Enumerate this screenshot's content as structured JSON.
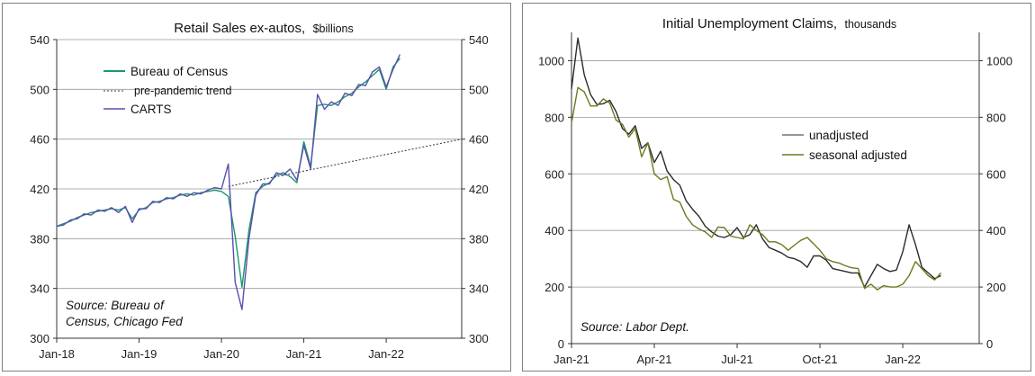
{
  "colors": {
    "census": "#1a9a6a",
    "trend": "#333333",
    "carts": "#5a4fb0",
    "unadjusted": "#2b2b2b",
    "seasonal": "#6b7a1e"
  },
  "chart_data": [
    {
      "type": "line",
      "title": "Retail Sales ex-autos,",
      "title_unit": "$billions",
      "ylim": [
        300,
        540
      ],
      "yticks": [
        "300",
        "340",
        "380",
        "420",
        "460",
        "500",
        "540"
      ],
      "xticks": [
        "Jan-18",
        "Jan-19",
        "Jan-20",
        "Jan-21",
        "Jan-22"
      ],
      "x_domain_months": [
        0,
        59
      ],
      "grid": true,
      "legend_position": "top-left",
      "source_lines": [
        "Source: Bureau of",
        "Census, Chicago Fed"
      ],
      "series": [
        {
          "name": "Bureau of Census",
          "key": "census",
          "points": [
            [
              0,
              390
            ],
            [
              1,
              392
            ],
            [
              2,
              394
            ],
            [
              3,
              397
            ],
            [
              4,
              399
            ],
            [
              5,
              401
            ],
            [
              6,
              402
            ],
            [
              7,
              403
            ],
            [
              8,
              404
            ],
            [
              9,
              403
            ],
            [
              10,
              405
            ],
            [
              11,
              396
            ],
            [
              12,
              403
            ],
            [
              13,
              405
            ],
            [
              14,
              409
            ],
            [
              15,
              410
            ],
            [
              16,
              412
            ],
            [
              17,
              413
            ],
            [
              18,
              415
            ],
            [
              19,
              416
            ],
            [
              20,
              415
            ],
            [
              21,
              417
            ],
            [
              22,
              418
            ],
            [
              23,
              419
            ],
            [
              24,
              418
            ],
            [
              25,
              414
            ],
            [
              26,
              382
            ],
            [
              27,
              341
            ],
            [
              28,
              387
            ],
            [
              29,
              417
            ],
            [
              30,
              422
            ],
            [
              31,
              425
            ],
            [
              32,
              431
            ],
            [
              33,
              433
            ],
            [
              34,
              430
            ],
            [
              35,
              425
            ],
            [
              36,
              458
            ],
            [
              37,
              438
            ],
            [
              38,
              487
            ],
            [
              39,
              488
            ],
            [
              40,
              487
            ],
            [
              41,
              490
            ],
            [
              42,
              494
            ],
            [
              43,
              497
            ],
            [
              44,
              502
            ],
            [
              45,
              506
            ],
            [
              46,
              511
            ],
            [
              47,
              516
            ],
            [
              48,
              500
            ],
            [
              49,
              518
            ],
            [
              50,
              525
            ]
          ]
        },
        {
          "name": "pre-pandemic trend",
          "key": "trend",
          "dashed": true,
          "points": [
            [
              25,
              422
            ],
            [
              59,
              460
            ]
          ]
        },
        {
          "name": "CARTS",
          "key": "carts",
          "points": [
            [
              0,
              390
            ],
            [
              1,
              391
            ],
            [
              2,
              395
            ],
            [
              3,
              396
            ],
            [
              4,
              400
            ],
            [
              5,
              399
            ],
            [
              6,
              403
            ],
            [
              7,
              402
            ],
            [
              8,
              405
            ],
            [
              9,
              401
            ],
            [
              10,
              406
            ],
            [
              11,
              393
            ],
            [
              12,
              404
            ],
            [
              13,
              404
            ],
            [
              14,
              410
            ],
            [
              15,
              409
            ],
            [
              16,
              413
            ],
            [
              17,
              412
            ],
            [
              18,
              416
            ],
            [
              19,
              414
            ],
            [
              20,
              417
            ],
            [
              21,
              416
            ],
            [
              22,
              419
            ],
            [
              23,
              421
            ],
            [
              24,
              420
            ],
            [
              25,
              440
            ],
            [
              26,
              345
            ],
            [
              27,
              323
            ],
            [
              28,
              380
            ],
            [
              29,
              415
            ],
            [
              30,
              424
            ],
            [
              31,
              424
            ],
            [
              32,
              433
            ],
            [
              33,
              431
            ],
            [
              34,
              436
            ],
            [
              35,
              427
            ],
            [
              36,
              455
            ],
            [
              37,
              436
            ],
            [
              38,
              496
            ],
            [
              39,
              484
            ],
            [
              40,
              490
            ],
            [
              41,
              487
            ],
            [
              42,
              497
            ],
            [
              43,
              495
            ],
            [
              44,
              504
            ],
            [
              45,
              503
            ],
            [
              46,
              514
            ],
            [
              47,
              518
            ],
            [
              48,
              502
            ],
            [
              49,
              516
            ],
            [
              50,
              528
            ]
          ]
        }
      ]
    },
    {
      "type": "line",
      "title": "Initial Unemployment Claims,",
      "title_unit": "thousands",
      "ylim": [
        0,
        1100
      ],
      "yticks": [
        "0",
        "200",
        "400",
        "600",
        "800",
        "1000"
      ],
      "xticks": [
        "Jan-21",
        "Apr-21",
        "Jul-21",
        "Oct-21",
        "Jan-22"
      ],
      "x_domain_weeks": [
        0,
        64
      ],
      "grid": true,
      "legend_position": "center-right",
      "source_lines": [
        "Source: Labor Dept."
      ],
      "series": [
        {
          "name": "unadjusted",
          "key": "unadjusted",
          "points": [
            [
              0,
              900
            ],
            [
              1,
              1080
            ],
            [
              2,
              950
            ],
            [
              3,
              880
            ],
            [
              4,
              845
            ],
            [
              5,
              848
            ],
            [
              6,
              860
            ],
            [
              7,
              820
            ],
            [
              8,
              760
            ],
            [
              9,
              740
            ],
            [
              10,
              770
            ],
            [
              11,
              690
            ],
            [
              12,
              710
            ],
            [
              13,
              640
            ],
            [
              14,
              680
            ],
            [
              15,
              610
            ],
            [
              16,
              580
            ],
            [
              17,
              560
            ],
            [
              18,
              505
            ],
            [
              19,
              475
            ],
            [
              20,
              450
            ],
            [
              21,
              415
            ],
            [
              22,
              395
            ],
            [
              23,
              380
            ],
            [
              24,
              375
            ],
            [
              25,
              385
            ],
            [
              26,
              410
            ],
            [
              27,
              375
            ],
            [
              28,
              385
            ],
            [
              29,
              420
            ],
            [
              30,
              370
            ],
            [
              31,
              340
            ],
            [
              32,
              330
            ],
            [
              33,
              320
            ],
            [
              34,
              305
            ],
            [
              35,
              300
            ],
            [
              36,
              290
            ],
            [
              37,
              270
            ],
            [
              38,
              310
            ],
            [
              39,
              310
            ],
            [
              40,
              295
            ],
            [
              41,
              265
            ],
            [
              42,
              260
            ],
            [
              43,
              255
            ],
            [
              44,
              250
            ],
            [
              45,
              250
            ],
            [
              46,
              200
            ],
            [
              47,
              240
            ],
            [
              48,
              280
            ],
            [
              49,
              265
            ],
            [
              50,
              255
            ],
            [
              51,
              260
            ],
            [
              52,
              325
            ],
            [
              53,
              420
            ],
            [
              54,
              350
            ],
            [
              55,
              270
            ],
            [
              56,
              250
            ],
            [
              57,
              230
            ],
            [
              58,
              240
            ]
          ]
        },
        {
          "name": "seasonal adjusted",
          "key": "seasonal",
          "points": [
            [
              0,
              780
            ],
            [
              1,
              905
            ],
            [
              2,
              890
            ],
            [
              3,
              840
            ],
            [
              4,
              840
            ],
            [
              5,
              865
            ],
            [
              6,
              850
            ],
            [
              7,
              790
            ],
            [
              8,
              775
            ],
            [
              9,
              730
            ],
            [
              10,
              760
            ],
            [
              11,
              660
            ],
            [
              12,
              710
            ],
            [
              13,
              600
            ],
            [
              14,
              580
            ],
            [
              15,
              590
            ],
            [
              16,
              510
            ],
            [
              17,
              500
            ],
            [
              18,
              450
            ],
            [
              19,
              420
            ],
            [
              20,
              405
            ],
            [
              21,
              395
            ],
            [
              22,
              375
            ],
            [
              23,
              412
            ],
            [
              24,
              410
            ],
            [
              25,
              380
            ],
            [
              26,
              375
            ],
            [
              27,
              370
            ],
            [
              28,
              420
            ],
            [
              29,
              400
            ],
            [
              30,
              385
            ],
            [
              31,
              360
            ],
            [
              32,
              360
            ],
            [
              33,
              350
            ],
            [
              34,
              330
            ],
            [
              35,
              348
            ],
            [
              36,
              365
            ],
            [
              37,
              375
            ],
            [
              38,
              353
            ],
            [
              39,
              330
            ],
            [
              40,
              300
            ],
            [
              41,
              290
            ],
            [
              42,
              285
            ],
            [
              43,
              275
            ],
            [
              44,
              268
            ],
            [
              45,
              265
            ],
            [
              46,
              195
            ],
            [
              47,
              210
            ],
            [
              48,
              190
            ],
            [
              49,
              205
            ],
            [
              50,
              200
            ],
            [
              51,
              200
            ],
            [
              52,
              210
            ],
            [
              53,
              240
            ],
            [
              54,
              290
            ],
            [
              55,
              265
            ],
            [
              56,
              240
            ],
            [
              57,
              225
            ],
            [
              58,
              250
            ]
          ]
        }
      ]
    }
  ]
}
